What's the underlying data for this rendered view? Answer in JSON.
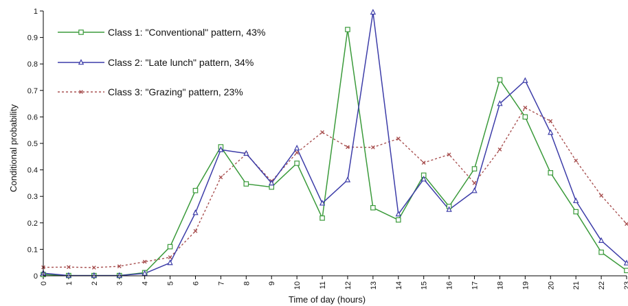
{
  "chart_data": {
    "type": "line",
    "xlabel": "Time of day (hours)",
    "ylabel": "Conditional probability",
    "x": [
      0,
      1,
      2,
      3,
      4,
      5,
      6,
      7,
      8,
      9,
      10,
      11,
      12,
      13,
      14,
      15,
      16,
      17,
      18,
      19,
      20,
      21,
      22,
      23
    ],
    "xlim": [
      0,
      23
    ],
    "ylim": [
      0,
      1
    ],
    "yticks": [
      0,
      0.1,
      0.2,
      0.3,
      0.4,
      0.5,
      0.6,
      0.7,
      0.8,
      0.9,
      1
    ],
    "ytick_labels": [
      "0",
      "0.1",
      "0.2",
      "0.3",
      "0.4",
      "0.5",
      "0.6",
      "0.7",
      "0.8",
      "0.9",
      "1"
    ],
    "xtick_labels": [
      "0",
      "1",
      "2",
      "3",
      "4",
      "5",
      "6",
      "7",
      "8",
      "9",
      "10",
      "11",
      "12",
      "13",
      "14",
      "15",
      "16",
      "17",
      "18",
      "19",
      "20",
      "21",
      "22",
      "23"
    ],
    "grid": false,
    "legend_position": "top-left",
    "series": [
      {
        "name": "Class 1: \"Conventional\" pattern, 43%",
        "color": "#3a9a3a",
        "line_style": "solid",
        "marker": "square",
        "values": [
          0.005,
          0.001,
          0.001,
          0.001,
          0.012,
          0.11,
          0.322,
          0.487,
          0.347,
          0.335,
          0.425,
          0.218,
          0.93,
          0.257,
          0.211,
          0.38,
          0.262,
          0.404,
          0.74,
          0.6,
          0.389,
          0.242,
          0.089,
          0.02
        ]
      },
      {
        "name": "Class 2: \"Late lunch\" pattern, 34%",
        "color": "#3c3ca8",
        "line_style": "solid",
        "marker": "triangle",
        "values": [
          0.01,
          0.001,
          0.001,
          0.001,
          0.009,
          0.049,
          0.238,
          0.476,
          0.462,
          0.35,
          0.482,
          0.274,
          0.362,
          0.995,
          0.233,
          0.365,
          0.25,
          0.321,
          0.65,
          0.737,
          0.541,
          0.283,
          0.133,
          0.048
        ]
      },
      {
        "name": "Class 3: \"Grazing\" pattern, 23%",
        "color": "#a85050",
        "line_style": "dotted",
        "marker": "x",
        "values": [
          0.032,
          0.033,
          0.031,
          0.036,
          0.053,
          0.07,
          0.169,
          0.372,
          0.46,
          0.357,
          0.465,
          0.542,
          0.486,
          0.485,
          0.518,
          0.427,
          0.458,
          0.35,
          0.477,
          0.635,
          0.584,
          0.435,
          0.303,
          0.196
        ]
      }
    ]
  }
}
